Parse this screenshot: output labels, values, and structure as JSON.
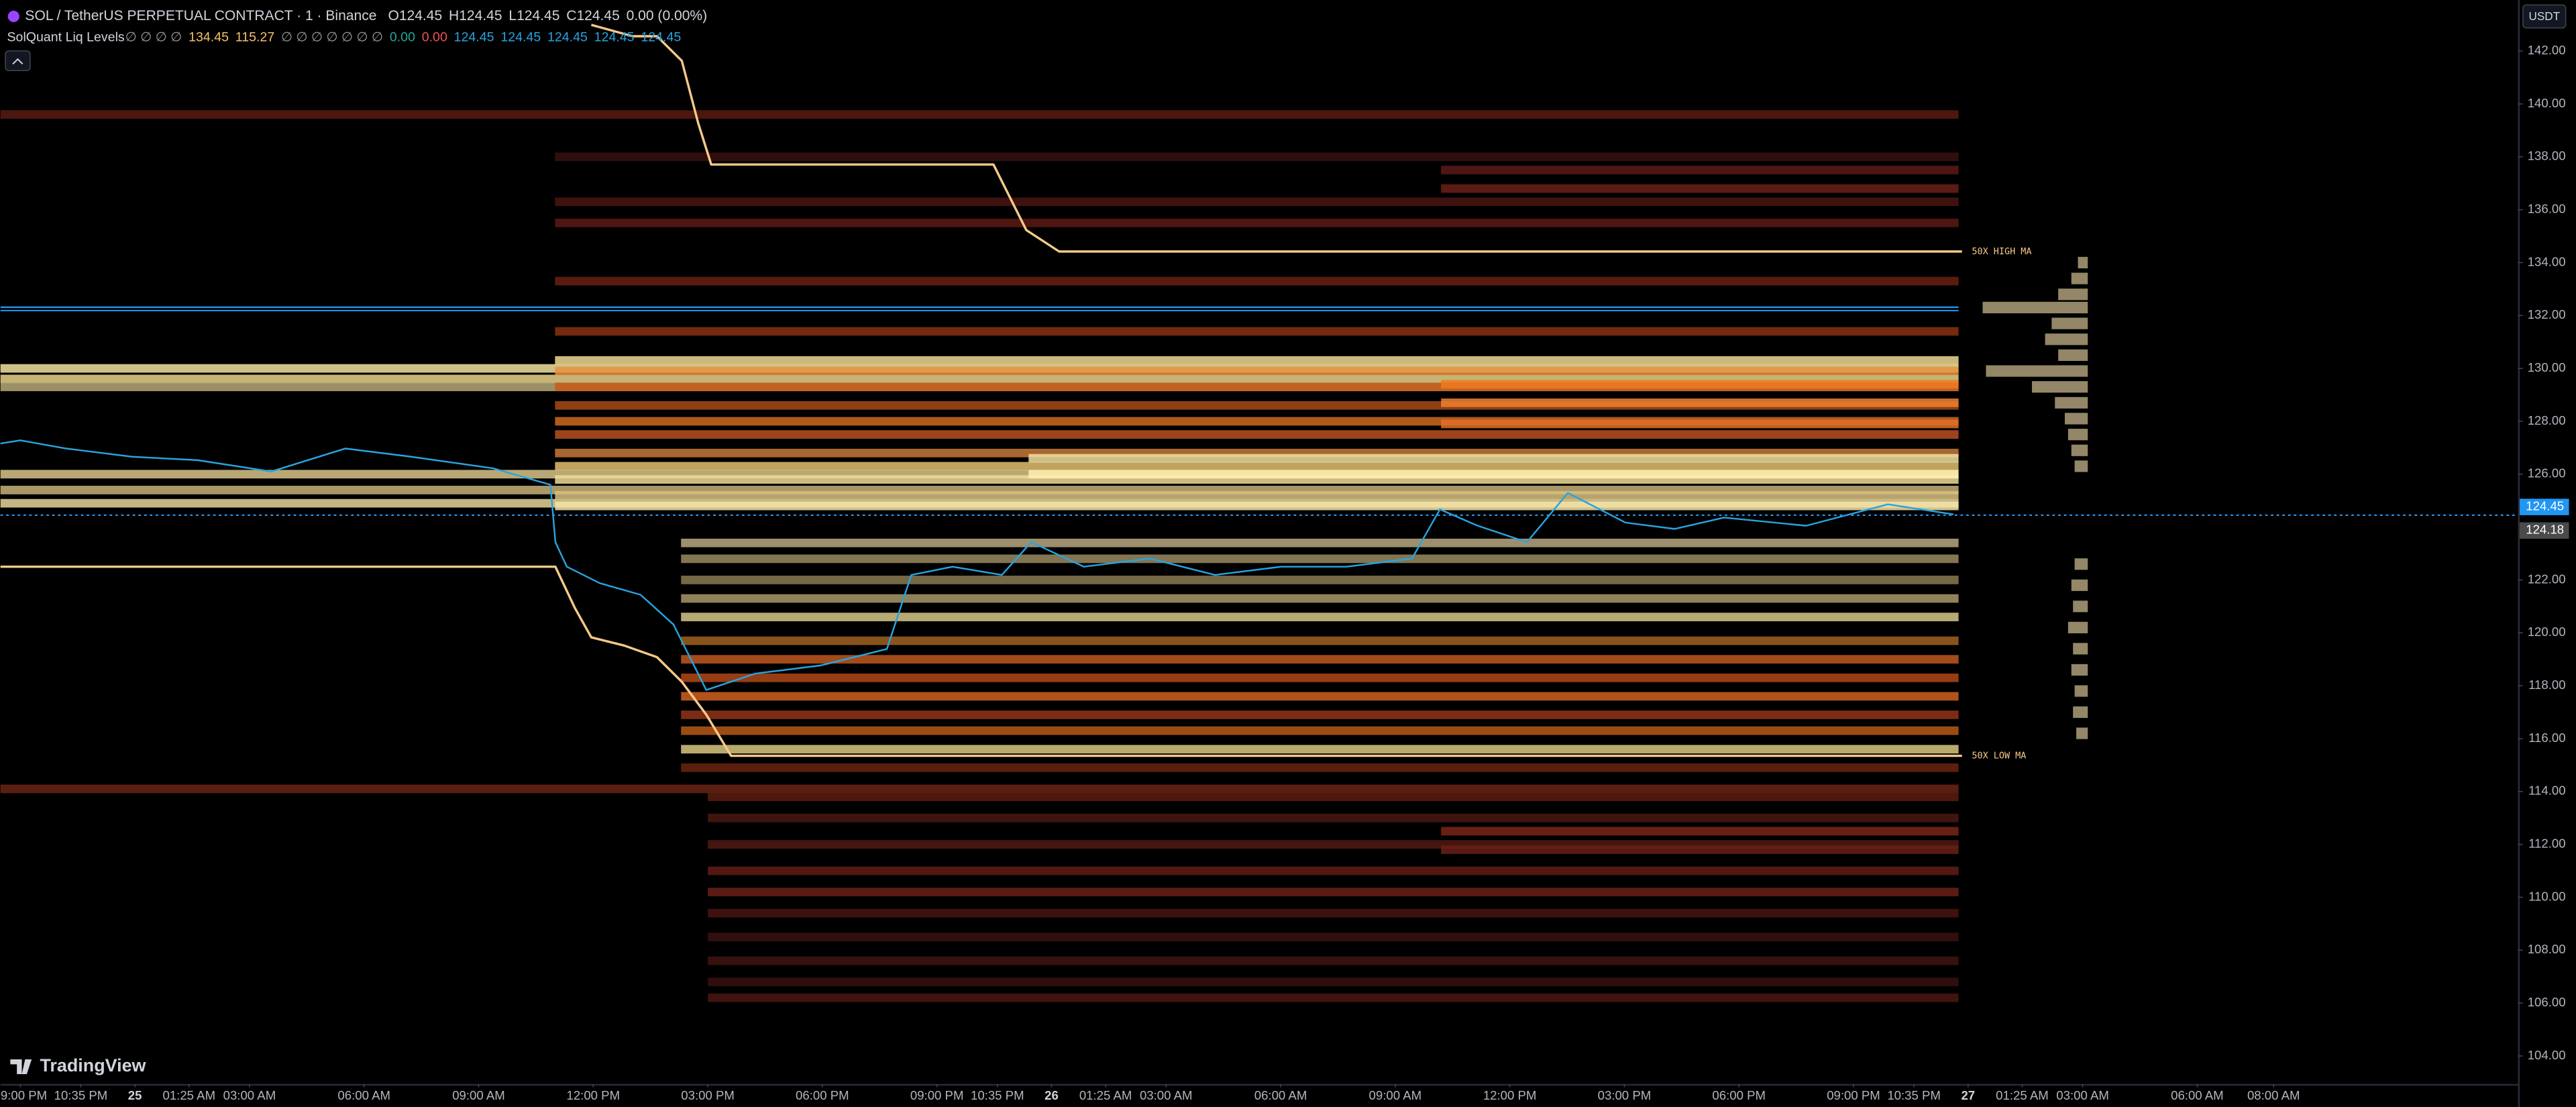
{
  "chart_data": {
    "type": "line",
    "title": "SOL / TetherUS PERPETUAL CONTRACT · 1 · Binance",
    "ohlc": [
      "O124.45",
      "H124.45",
      "L124.45",
      "C124.45",
      "0.00 (0.00%)"
    ],
    "indicator": {
      "name": "SolQuant Liq Levels",
      "values": [
        {
          "text": "∅ ∅ ∅ ∅",
          "color": "#9a9a9a"
        },
        {
          "text": "134.45",
          "color": "#f5c16c"
        },
        {
          "text": "115.27",
          "color": "#f5c16c"
        },
        {
          "text": "∅ ∅ ∅ ∅ ∅ ∅ ∅",
          "color": "#9a9a9a"
        },
        {
          "text": "0.00",
          "color": "#26a69a"
        },
        {
          "text": "0.00",
          "color": "#ef5350"
        },
        {
          "text": "124.45",
          "color": "#29a3e0"
        },
        {
          "text": "124.45",
          "color": "#29a3e0"
        },
        {
          "text": "124.45",
          "color": "#29a3e0"
        },
        {
          "text": "124.45",
          "color": "#29a3e0"
        },
        {
          "text": "124.45",
          "color": "#29a3e0"
        }
      ]
    },
    "currency": "USDT",
    "brand": "TradingView",
    "xlim": [
      -0.52,
      65.4
    ],
    "ylim": [
      102.94,
      143.93
    ],
    "yticks": [
      {
        "value": 104,
        "label": "104.00"
      },
      {
        "value": 106,
        "label": "106.00"
      },
      {
        "value": 108,
        "label": "108.00"
      },
      {
        "value": 110,
        "label": "110.00"
      },
      {
        "value": 112,
        "label": "112.00"
      },
      {
        "value": 114,
        "label": "114.00"
      },
      {
        "value": 116,
        "label": "116.00"
      },
      {
        "value": 118,
        "label": "118.00"
      },
      {
        "value": 120,
        "label": "120.00"
      },
      {
        "value": 122,
        "label": "122.00"
      },
      {
        "value": 126,
        "label": "126.00"
      },
      {
        "value": 128,
        "label": "128.00"
      },
      {
        "value": 130,
        "label": "130.00"
      },
      {
        "value": 132,
        "label": "132.00"
      },
      {
        "value": 134,
        "label": "134.00"
      },
      {
        "value": 136,
        "label": "136.00"
      },
      {
        "value": 138,
        "label": "138.00"
      },
      {
        "value": 140,
        "label": "140.00"
      },
      {
        "value": 142,
        "label": "142.00"
      }
    ],
    "xticks": [
      {
        "value": 0,
        "label": "09:00 PM"
      },
      {
        "value": 1.583,
        "label": "10:35 PM"
      },
      {
        "value": 3,
        "label": "25"
      },
      {
        "value": 4.417,
        "label": "01:25 AM"
      },
      {
        "value": 6,
        "label": "03:00 AM"
      },
      {
        "value": 9,
        "label": "06:00 AM"
      },
      {
        "value": 12,
        "label": "09:00 AM"
      },
      {
        "value": 15,
        "label": "12:00 PM"
      },
      {
        "value": 18,
        "label": "03:00 PM"
      },
      {
        "value": 21,
        "label": "06:00 PM"
      },
      {
        "value": 24,
        "label": "09:00 PM"
      },
      {
        "value": 25.583,
        "label": "10:35 PM"
      },
      {
        "value": 27,
        "label": "26"
      },
      {
        "value": 28.417,
        "label": "01:25 AM"
      },
      {
        "value": 30,
        "label": "03:00 AM"
      },
      {
        "value": 33,
        "label": "06:00 AM"
      },
      {
        "value": 36,
        "label": "09:00 AM"
      },
      {
        "value": 39,
        "label": "12:00 PM"
      },
      {
        "value": 42,
        "label": "03:00 PM"
      },
      {
        "value": 45,
        "label": "06:00 PM"
      },
      {
        "value": 48,
        "label": "09:00 PM"
      },
      {
        "value": 49.583,
        "label": "10:35 PM"
      },
      {
        "value": 51,
        "label": "27"
      },
      {
        "value": 52.417,
        "label": "01:25 AM"
      },
      {
        "value": 54,
        "label": "03:00 AM"
      },
      {
        "value": 57,
        "label": "06:00 AM"
      },
      {
        "value": 59,
        "label": "08:00 AM"
      }
    ],
    "heatmap_end": 50.75,
    "liq_levels": [
      {
        "price": 139.6,
        "start": -0.52,
        "color": "#5a1a10"
      },
      {
        "price": 130.0,
        "start": -0.52,
        "color": "#f2e3a0"
      },
      {
        "price": 129.6,
        "start": -0.52,
        "color": "#e8d48a"
      },
      {
        "price": 129.3,
        "start": -0.52,
        "color": "#b8a878"
      },
      {
        "price": 126.0,
        "start": -0.52,
        "color": "#d9c58a"
      },
      {
        "price": 125.4,
        "start": -0.52,
        "color": "#c8b27a"
      },
      {
        "price": 124.9,
        "start": -0.52,
        "color": "#e6d79a"
      },
      {
        "price": 114.1,
        "start": -0.52,
        "color": "#6b2415"
      },
      {
        "price": 138.0,
        "start": 14.0,
        "color": "#3a1010"
      },
      {
        "price": 136.3,
        "start": 14.0,
        "color": "#4a1512"
      },
      {
        "price": 135.5,
        "start": 14.0,
        "color": "#5a1a14"
      },
      {
        "price": 133.3,
        "start": 14.0,
        "color": "#6a2010"
      },
      {
        "price": 131.4,
        "start": 14.0,
        "color": "#8a3010"
      },
      {
        "price": 130.3,
        "start": 14.0,
        "color": "#f0d890"
      },
      {
        "price": 129.9,
        "start": 14.0,
        "color": "#e89040"
      },
      {
        "price": 129.3,
        "start": 14.0,
        "color": "#c85a18"
      },
      {
        "price": 128.6,
        "start": 14.0,
        "color": "#a84a18"
      },
      {
        "price": 128.0,
        "start": 14.0,
        "color": "#d06820"
      },
      {
        "price": 127.5,
        "start": 14.0,
        "color": "#b85020"
      },
      {
        "price": 126.8,
        "start": 14.0,
        "color": "#c87838"
      },
      {
        "price": 126.3,
        "start": 14.0,
        "color": "#e0c070"
      },
      {
        "price": 125.8,
        "start": 14.0,
        "color": "#f0dc98"
      },
      {
        "price": 125.2,
        "start": 14.0,
        "color": "#d8c080"
      },
      {
        "price": 124.8,
        "start": 14.0,
        "color": "#f4e4a8"
      },
      {
        "price": 123.4,
        "start": 17.3,
        "color": "#b8a880"
      },
      {
        "price": 122.8,
        "start": 17.3,
        "color": "#9a8a60"
      },
      {
        "price": 122.0,
        "start": 17.3,
        "color": "#8a7a50"
      },
      {
        "price": 121.3,
        "start": 17.3,
        "color": "#a89868"
      },
      {
        "price": 120.6,
        "start": 17.3,
        "color": "#d8c888"
      },
      {
        "price": 119.7,
        "start": 17.3,
        "color": "#a06020"
      },
      {
        "price": 119.0,
        "start": 17.3,
        "color": "#c05820"
      },
      {
        "price": 118.3,
        "start": 17.3,
        "color": "#b04818"
      },
      {
        "price": 117.6,
        "start": 17.3,
        "color": "#d06020"
      },
      {
        "price": 116.9,
        "start": 17.3,
        "color": "#903418"
      },
      {
        "price": 116.3,
        "start": 17.3,
        "color": "#b85818"
      },
      {
        "price": 115.6,
        "start": 17.3,
        "color": "#d8c880"
      },
      {
        "price": 114.9,
        "start": 17.3,
        "color": "#6a2412"
      },
      {
        "price": 113.8,
        "start": 18.0,
        "color": "#5a1c10"
      },
      {
        "price": 113.0,
        "start": 18.0,
        "color": "#4a1810"
      },
      {
        "price": 112.0,
        "start": 18.0,
        "color": "#501a12"
      },
      {
        "price": 111.0,
        "start": 18.0,
        "color": "#601c14"
      },
      {
        "price": 110.2,
        "start": 18.0,
        "color": "#6a2018"
      },
      {
        "price": 109.4,
        "start": 18.0,
        "color": "#4a1410"
      },
      {
        "price": 108.5,
        "start": 18.0,
        "color": "#3a1210"
      },
      {
        "price": 107.6,
        "start": 18.0,
        "color": "#401410"
      },
      {
        "price": 106.8,
        "start": 18.0,
        "color": "#3a1010"
      },
      {
        "price": 106.2,
        "start": 18.0,
        "color": "#4a1612"
      },
      {
        "price": 126.6,
        "start": 26.4,
        "color": "#f0e0a0"
      },
      {
        "price": 126.0,
        "start": 26.4,
        "color": "#fff0b0"
      },
      {
        "price": 137.5,
        "start": 37.2,
        "color": "#5a1a18"
      },
      {
        "price": 136.8,
        "start": 37.2,
        "color": "#6a2018"
      },
      {
        "price": 129.4,
        "start": 37.2,
        "color": "#f07a20"
      },
      {
        "price": 128.7,
        "start": 37.2,
        "color": "#f08030"
      },
      {
        "price": 127.9,
        "start": 37.2,
        "color": "#e07028"
      },
      {
        "price": 112.5,
        "start": 37.2,
        "color": "#7a2418"
      },
      {
        "price": 111.8,
        "start": 37.2,
        "color": "#6a2018"
      }
    ],
    "profile": [
      {
        "price": 134.0,
        "size": 6
      },
      {
        "price": 133.4,
        "size": 10
      },
      {
        "price": 132.8,
        "size": 18
      },
      {
        "price": 132.3,
        "size": 64
      },
      {
        "price": 131.7,
        "size": 22
      },
      {
        "price": 131.1,
        "size": 26
      },
      {
        "price": 130.5,
        "size": 18
      },
      {
        "price": 129.9,
        "size": 62
      },
      {
        "price": 129.3,
        "size": 34
      },
      {
        "price": 128.7,
        "size": 20
      },
      {
        "price": 128.1,
        "size": 14
      },
      {
        "price": 127.5,
        "size": 12
      },
      {
        "price": 126.9,
        "size": 10
      },
      {
        "price": 126.3,
        "size": 8
      },
      {
        "price": 122.6,
        "size": 8
      },
      {
        "price": 121.8,
        "size": 10
      },
      {
        "price": 121.0,
        "size": 9
      },
      {
        "price": 120.2,
        "size": 12
      },
      {
        "price": 119.4,
        "size": 9
      },
      {
        "price": 118.6,
        "size": 10
      },
      {
        "price": 117.8,
        "size": 8
      },
      {
        "price": 117.0,
        "size": 9
      },
      {
        "price": 116.2,
        "size": 7
      }
    ],
    "profile_color": "#b8a982",
    "level_lines": [
      {
        "price": 132.25,
        "color": "#2196f3"
      }
    ],
    "price_line": {
      "color": "#29a3e0",
      "x": [
        -0.52,
        0,
        1.2,
        2.92,
        4.64,
        6.57,
        8.51,
        10.23,
        12.38,
        13.88,
        14.01,
        14.31,
        15.17,
        16.24,
        17.1,
        17.53,
        17.96,
        19.25,
        20.97,
        22.69,
        23.33,
        24.41,
        25.7,
        26.47,
        27.85,
        29.57,
        31.28,
        33.0,
        34.72,
        36.44,
        37.17,
        38.16,
        39.45,
        40.52,
        42.03,
        43.32,
        44.61,
        46.76,
        48.9,
        50.62
      ],
      "values": [
        127.16,
        127.28,
        126.97,
        126.66,
        126.53,
        126.1,
        126.97,
        126.66,
        126.22,
        125.6,
        123.43,
        122.5,
        121.88,
        121.44,
        120.32,
        119.08,
        117.84,
        118.46,
        118.77,
        119.39,
        122.19,
        122.5,
        122.19,
        123.43,
        122.5,
        122.81,
        122.19,
        122.5,
        122.5,
        122.81,
        124.67,
        124.05,
        123.43,
        125.29,
        124.17,
        123.93,
        124.36,
        124.05,
        124.86,
        124.48
      ]
    },
    "high_ma": {
      "color": "#f5c98a",
      "label": "50X HIGH MA",
      "x": [
        14.95,
        16.03,
        16.67,
        17.32,
        17.75,
        18.09,
        25.48,
        26.34,
        27.2,
        50.84
      ],
      "values": [
        142.99,
        142.56,
        142.56,
        141.63,
        139.27,
        137.71,
        137.71,
        135.23,
        134.42,
        134.42
      ]
    },
    "low_ma": {
      "color": "#f5c98a",
      "label": "50X LOW MA",
      "x": [
        -0.52,
        14.01,
        14.52,
        14.95,
        15.81,
        16.67,
        17.32,
        17.96,
        18.61,
        50.84
      ],
      "values": [
        122.5,
        122.5,
        120.94,
        119.83,
        119.52,
        119.08,
        118.15,
        116.91,
        115.35,
        115.35
      ]
    },
    "price_tags": [
      {
        "value": 124.45,
        "color": "#2196f3"
      },
      {
        "value": 124.18,
        "color": "#4a4a4a"
      }
    ]
  }
}
